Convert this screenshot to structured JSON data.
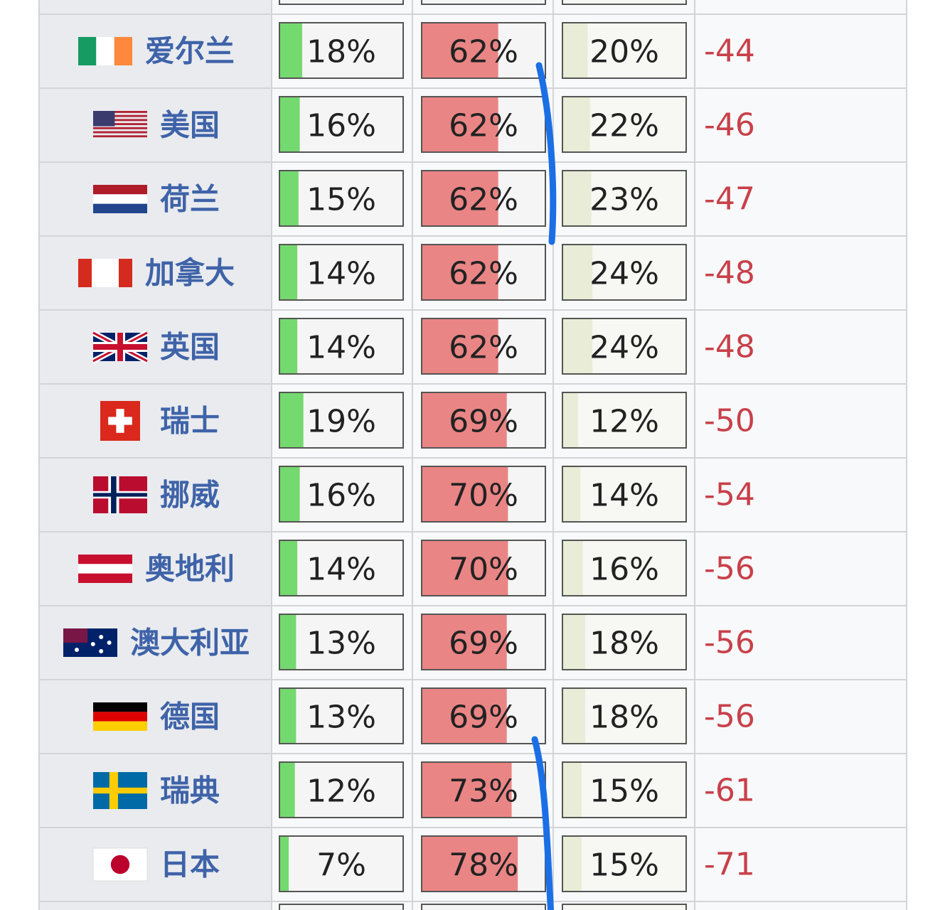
{
  "table": {
    "rows": [
      {
        "country": "爱尔兰",
        "favorable": {
          "value": 18,
          "label": "18%"
        },
        "unfavorable": {
          "value": 62,
          "label": "62%"
        },
        "neutral": {
          "value": 20,
          "label": "20%"
        },
        "net": -44
      },
      {
        "country": "美国",
        "favorable": {
          "value": 16,
          "label": "16%"
        },
        "unfavorable": {
          "value": 62,
          "label": "62%"
        },
        "neutral": {
          "value": 22,
          "label": "22%"
        },
        "net": -46
      },
      {
        "country": "荷兰",
        "favorable": {
          "value": 15,
          "label": "15%"
        },
        "unfavorable": {
          "value": 62,
          "label": "62%"
        },
        "neutral": {
          "value": 23,
          "label": "23%"
        },
        "net": -47
      },
      {
        "country": "加拿大",
        "favorable": {
          "value": 14,
          "label": "14%"
        },
        "unfavorable": {
          "value": 62,
          "label": "62%"
        },
        "neutral": {
          "value": 24,
          "label": "24%"
        },
        "net": -48
      },
      {
        "country": "英国",
        "favorable": {
          "value": 14,
          "label": "14%"
        },
        "unfavorable": {
          "value": 62,
          "label": "62%"
        },
        "neutral": {
          "value": 24,
          "label": "24%"
        },
        "net": -48
      },
      {
        "country": "瑞士",
        "favorable": {
          "value": 19,
          "label": "19%"
        },
        "unfavorable": {
          "value": 69,
          "label": "69%"
        },
        "neutral": {
          "value": 12,
          "label": "12%"
        },
        "net": -50
      },
      {
        "country": "挪威",
        "favorable": {
          "value": 16,
          "label": "16%"
        },
        "unfavorable": {
          "value": 70,
          "label": "70%"
        },
        "neutral": {
          "value": 14,
          "label": "14%"
        },
        "net": -54
      },
      {
        "country": "奥地利",
        "favorable": {
          "value": 14,
          "label": "14%"
        },
        "unfavorable": {
          "value": 70,
          "label": "70%"
        },
        "neutral": {
          "value": 16,
          "label": "16%"
        },
        "net": -56
      },
      {
        "country": "澳大利亚",
        "favorable": {
          "value": 13,
          "label": "13%"
        },
        "unfavorable": {
          "value": 69,
          "label": "69%"
        },
        "neutral": {
          "value": 18,
          "label": "18%"
        },
        "net": -56
      },
      {
        "country": "德国",
        "favorable": {
          "value": 13,
          "label": "13%"
        },
        "unfavorable": {
          "value": 69,
          "label": "69%"
        },
        "neutral": {
          "value": 18,
          "label": "18%"
        },
        "net": -56
      },
      {
        "country": "瑞典",
        "favorable": {
          "value": 12,
          "label": "12%"
        },
        "unfavorable": {
          "value": 73,
          "label": "73%"
        },
        "neutral": {
          "value": 15,
          "label": "15%"
        },
        "net": -61
      },
      {
        "country": "日本",
        "favorable": {
          "value": 7,
          "label": "7%"
        },
        "unfavorable": {
          "value": 78,
          "label": "78%"
        },
        "neutral": {
          "value": 15,
          "label": "15%"
        },
        "net": -71
      }
    ]
  }
}
